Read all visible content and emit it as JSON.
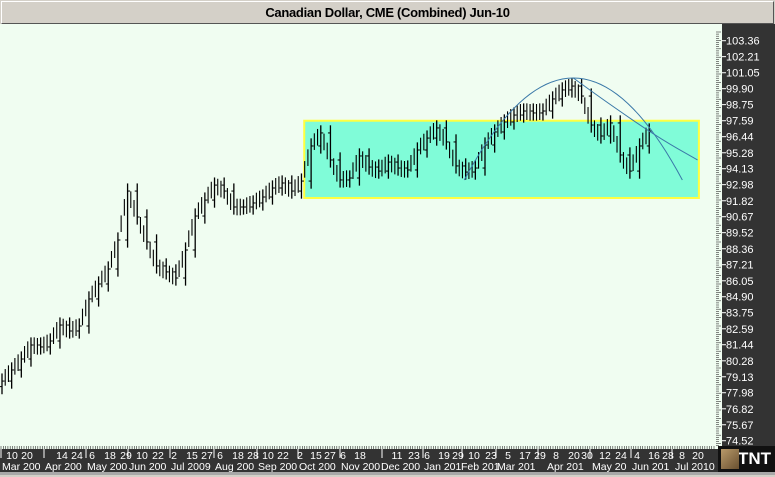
{
  "chart_data": {
    "type": "bar",
    "style": "OHLC price bars",
    "title": "Canadian Dollar, CME (Combined) Jun-10",
    "ylim": [
      74.52,
      103.36
    ],
    "y_ticks": [
      "103.36",
      "102.21",
      "101.05",
      "99.90",
      "98.75",
      "97.59",
      "96.44",
      "95.28",
      "94.13",
      "92.98",
      "91.82",
      "90.67",
      "89.52",
      "88.36",
      "87.21",
      "86.05",
      "84.90",
      "83.75",
      "82.59",
      "81.44",
      "80.28",
      "79.13",
      "77.98",
      "76.82",
      "75.67",
      "74.52"
    ],
    "x_day_ticks": [
      "10",
      "20",
      "14",
      "24",
      "6",
      "18",
      "29",
      "10",
      "22",
      "2",
      "15",
      "27",
      "6",
      "18",
      "28",
      "10",
      "22",
      "2",
      "15",
      "27",
      "6",
      "18",
      "11",
      "23",
      "6",
      "19",
      "29",
      "10",
      "23",
      "5",
      "17",
      "29",
      "8",
      "20",
      "30",
      "12",
      "24",
      "4",
      "16",
      "28",
      "8",
      "20"
    ],
    "x_month_ticks": [
      "Mar 200",
      "Apr 200",
      "May 200",
      "Jun 200",
      "Jul 2009",
      "Aug 200",
      "Sep 200",
      "Oct 200",
      "Nov 200",
      "Dec 200",
      "Jan 201",
      "Feb 201",
      "Mar 201",
      "Apr 201",
      "May 20",
      "Jun 201",
      "Jul 2010"
    ],
    "dates": [
      "2009-03-02",
      "2009-03-09",
      "2009-03-16",
      "2009-03-23",
      "2009-03-30",
      "2009-04-06",
      "2009-04-13",
      "2009-04-20",
      "2009-04-27",
      "2009-05-04",
      "2009-05-11",
      "2009-05-18",
      "2009-05-25",
      "2009-06-01",
      "2009-06-08",
      "2009-06-15",
      "2009-06-22",
      "2009-06-29",
      "2009-07-06",
      "2009-07-13",
      "2009-07-20",
      "2009-07-27",
      "2009-08-03",
      "2009-08-10",
      "2009-08-17",
      "2009-08-24",
      "2009-08-31",
      "2009-09-07",
      "2009-09-14",
      "2009-09-21",
      "2009-09-28",
      "2009-10-05",
      "2009-10-12",
      "2009-10-19",
      "2009-10-26",
      "2009-11-02",
      "2009-11-09",
      "2009-11-16",
      "2009-11-23",
      "2009-11-30",
      "2009-12-07",
      "2009-12-14",
      "2009-12-21",
      "2009-12-28",
      "2010-01-04",
      "2010-01-11",
      "2010-01-18",
      "2010-01-25",
      "2010-02-01",
      "2010-02-08",
      "2010-02-15",
      "2010-02-22",
      "2010-03-01",
      "2010-03-08",
      "2010-03-15",
      "2010-03-22",
      "2010-03-29",
      "2010-04-05",
      "2010-04-12",
      "2010-04-19",
      "2010-04-26",
      "2010-05-03",
      "2010-05-10",
      "2010-05-17",
      "2010-05-24",
      "2010-05-31",
      "2010-06-07",
      "2010-06-14"
    ],
    "close": [
      78.82,
      79.62,
      80.41,
      81.42,
      81.28,
      81.71,
      82.86,
      82.43,
      82.79,
      84.74,
      85.82,
      86.9,
      88.99,
      92.52,
      90.65,
      88.85,
      87.12,
      86.69,
      86.25,
      88.27,
      90.72,
      91.87,
      92.95,
      92.52,
      91.37,
      91.37,
      91.66,
      92.09,
      92.74,
      93.1,
      92.52,
      93.24,
      95.77,
      96.71,
      94.76,
      93.32,
      93.46,
      95.05,
      94.25,
      93.96,
      94.61,
      94.18,
      94.04,
      95.48,
      96.34,
      97.07,
      96.06,
      94.33,
      93.89,
      94.18,
      95.84,
      96.78,
      97.5,
      98.0,
      98.29,
      98.15,
      98.29,
      99.16,
      99.81,
      100.09,
      99.37,
      97.28,
      96.49,
      97.43,
      95.12,
      93.96,
      95.77,
      96.85
    ],
    "range_box": {
      "start": "2009-10-07",
      "end": "2010-07-20",
      "top": 97.59,
      "bottom": 92.02,
      "fill": "#80fcd8",
      "border": "#ffff40"
    },
    "arcs": [
      {
        "points": [
          [
            "2010-01-31",
            93.32
          ],
          [
            "2010-04-20",
            100.67
          ],
          [
            "2010-07-08",
            93.32
          ]
        ],
        "color": "#3a78a8"
      },
      {
        "points": [
          [
            "2010-04-20",
            100.67
          ],
          [
            "2010-05-14",
            98.94
          ],
          [
            "2010-06-20",
            96.41
          ],
          [
            "2010-07-19",
            94.76
          ]
        ],
        "color": "#3a78a8"
      }
    ],
    "bar_color": "#000000",
    "background": "#f0fdf1"
  },
  "logo": "TNT"
}
